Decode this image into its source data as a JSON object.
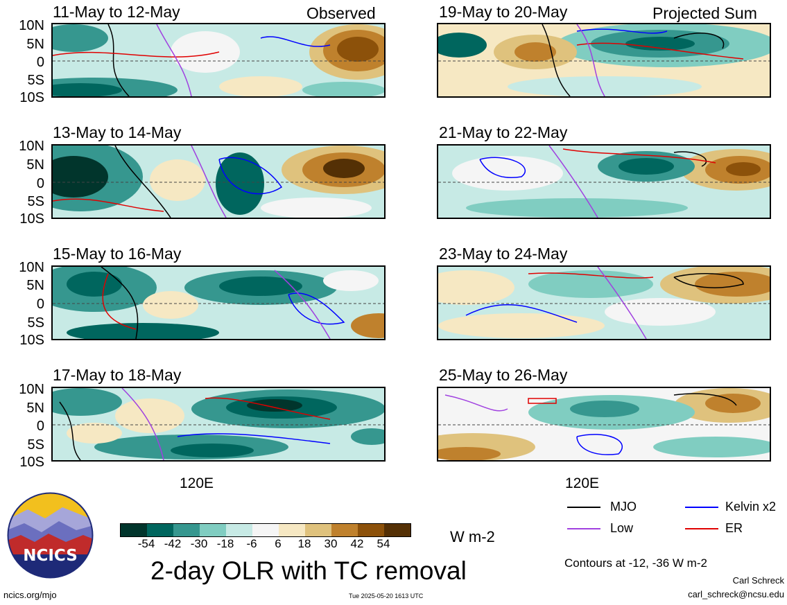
{
  "panels": [
    {
      "title": "11-May to 12-May",
      "corner": "Observed"
    },
    {
      "title": "13-May to 14-May",
      "corner": ""
    },
    {
      "title": "15-May to 16-May",
      "corner": ""
    },
    {
      "title": "17-May to 18-May",
      "corner": ""
    },
    {
      "title": "19-May to 20-May",
      "corner": "Projected Sum"
    },
    {
      "title": "21-May to 22-May",
      "corner": ""
    },
    {
      "title": "23-May to 24-May",
      "corner": ""
    },
    {
      "title": "25-May to 26-May",
      "corner": ""
    }
  ],
  "lat_labels": [
    "10N",
    "5N",
    "0",
    "5S",
    "10S"
  ],
  "x_label": "120E",
  "colorbar": {
    "ticks": [
      "-54",
      "-42",
      "-30",
      "-18",
      "-6",
      "6",
      "18",
      "30",
      "42",
      "54"
    ],
    "colors": [
      "#01352c",
      "#00665e",
      "#36978f",
      "#80cdc1",
      "#c7eae5",
      "#f5f5f5",
      "#f6e8c3",
      "#dfc27d",
      "#bf812d",
      "#8c510a",
      "#543005"
    ],
    "unit": "W m-2"
  },
  "legend": [
    {
      "label": "MJO",
      "color": "#000000"
    },
    {
      "label": "Kelvin x2",
      "color": "#0000ff"
    },
    {
      "label": "Low",
      "color": "#a040e0"
    },
    {
      "label": "ER",
      "color": "#e00000"
    }
  ],
  "main_title": "2-day OLR with TC removal",
  "contours_note": "Contours at -12, -36 W m-2",
  "author": "Carl Schreck",
  "email": "carl_schreck@ncsu.edu",
  "site": "ncics.org/mjo",
  "timestamp": "Tue 2025-05-20 1613 UTC",
  "logo_text": "NCICS",
  "chart_data": {
    "type": "heatmap",
    "title": "2-day OLR with TC removal",
    "units": "W m-2",
    "contour_levels": [
      -12,
      -36
    ],
    "latitude_ticks": [
      "10N",
      "5N",
      "0",
      "5S",
      "10S"
    ],
    "longitude_ticks": [
      "120E"
    ],
    "color_levels": [
      -54,
      -42,
      -30,
      -18,
      -6,
      6,
      18,
      30,
      42,
      54
    ],
    "series": [
      {
        "name": "MJO"
      },
      {
        "name": "Kelvin x2"
      },
      {
        "name": "Low"
      },
      {
        "name": "ER"
      }
    ],
    "panels": [
      "11-May to 12-May",
      "13-May to 14-May",
      "15-May to 16-May",
      "17-May to 18-May",
      "19-May to 20-May",
      "21-May to 22-May",
      "23-May to 24-May",
      "25-May to 26-May"
    ],
    "panel_groups": [
      "Observed",
      "Projected Sum"
    ],
    "grid": false,
    "legend_position": "bottom-right"
  }
}
